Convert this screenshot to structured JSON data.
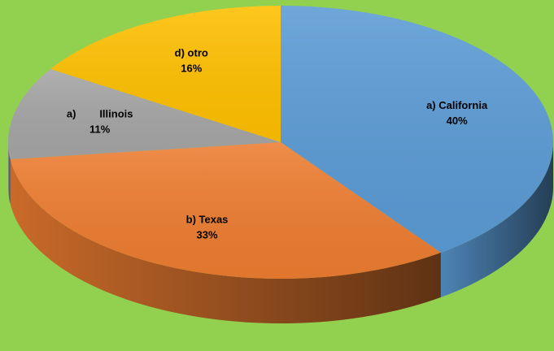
{
  "chart_data": {
    "type": "pie",
    "categories": [
      "a) California",
      "b) Texas",
      "a)        Illinois",
      "d) otro"
    ],
    "values": [
      40,
      33,
      11,
      16
    ],
    "value_labels": [
      "40%",
      "33%",
      "11%",
      "16%"
    ],
    "colors": [
      "#5b9bd5",
      "#ed7d31",
      "#a5a5a5",
      "#ffc000"
    ]
  }
}
